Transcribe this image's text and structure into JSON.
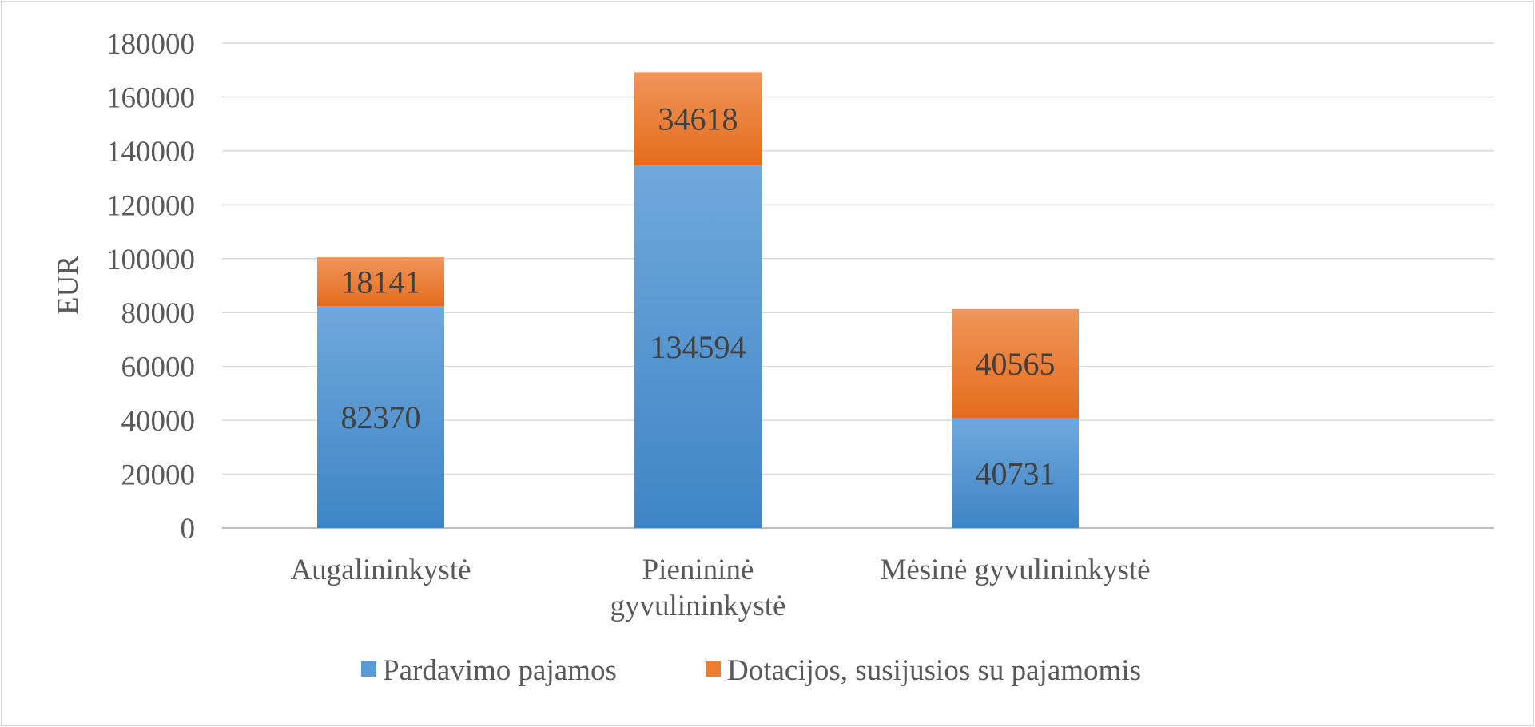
{
  "chart_data": {
    "type": "bar",
    "stacked": true,
    "categories": [
      [
        "Augalininkystė"
      ],
      [
        "Pienininė",
        "gyvulininkystė"
      ],
      [
        "Mėsinė gyvulininkystė"
      ]
    ],
    "series": [
      {
        "name": "Pardavimo pajamos",
        "values": [
          82370,
          134594,
          40731
        ],
        "color": "#5b9bd5"
      },
      {
        "name": "Dotacijos, susijusios su pajamomis",
        "values": [
          18141,
          34618,
          40565
        ],
        "color": "#ed7d31"
      }
    ],
    "ylabel": "EUR",
    "ylim": [
      0,
      180000
    ],
    "yticks": [
      0,
      20000,
      40000,
      60000,
      80000,
      100000,
      120000,
      140000,
      160000,
      180000
    ],
    "grid": true,
    "legend_position": "bottom"
  }
}
